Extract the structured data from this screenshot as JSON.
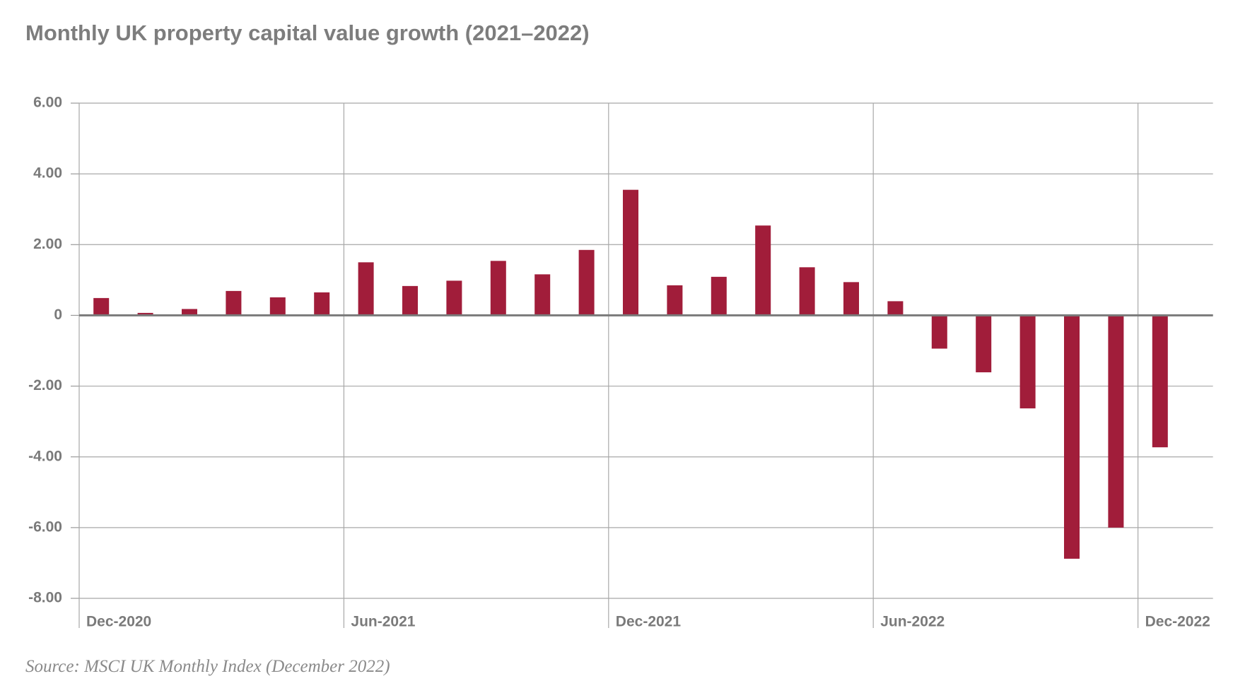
{
  "chart_data": {
    "type": "bar",
    "title": "Monthly UK property capital value growth (2021–2022)",
    "source": "Source: MSCI UK Monthly Index (December 2022)",
    "categories": [
      "Dec-2020",
      null,
      null,
      null,
      null,
      null,
      "Jun-2021",
      null,
      null,
      null,
      null,
      null,
      "Dec-2021",
      null,
      null,
      null,
      null,
      null,
      "Jun-2022",
      null,
      null,
      null,
      null,
      null,
      "Dec-2022"
    ],
    "values": [
      0.49,
      0.07,
      0.18,
      0.69,
      0.51,
      0.65,
      1.5,
      0.83,
      0.98,
      1.54,
      1.16,
      1.85,
      3.55,
      0.85,
      1.09,
      2.54,
      1.36,
      0.94,
      0.4,
      -0.94,
      -1.61,
      -2.63,
      -6.88,
      -6.0,
      -3.73
    ],
    "color": "#a11d3a",
    "ylim": [
      -8,
      6
    ],
    "yticks": [
      {
        "value": -8,
        "label": "-8.00"
      },
      {
        "value": -6,
        "label": "-6.00"
      },
      {
        "value": -4,
        "label": "-4.00"
      },
      {
        "value": -2,
        "label": "-2.00"
      },
      0,
      {
        "value": 2,
        "label": "2.00"
      },
      {
        "value": 4,
        "label": "4.00"
      },
      {
        "value": 6,
        "label": "6.00"
      }
    ],
    "grid": true
  }
}
